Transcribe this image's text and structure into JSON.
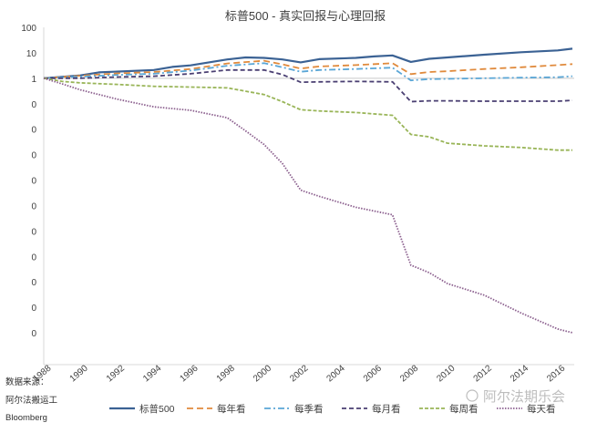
{
  "chart_data": {
    "type": "line",
    "title": "标普500 - 真实回报与心理回报",
    "xlabel": "",
    "ylabel": "",
    "yscale": "log",
    "ylim_exp": [
      -10,
      2
    ],
    "xlim": [
      1988,
      2016.9
    ],
    "y_tick_labels": [
      "100",
      "10",
      "1",
      "0",
      "0",
      "0",
      "0",
      "0",
      "0",
      "0",
      "0",
      "0",
      "0"
    ],
    "x_tick_labels": [
      "1988",
      "1990",
      "1992",
      "1994",
      "1996",
      "1998",
      "2000",
      "2002",
      "2004",
      "2006",
      "2008",
      "2010",
      "2012",
      "2014",
      "2016"
    ],
    "x_ticks": [
      1988,
      1990,
      1992,
      1994,
      1996,
      1998,
      2000,
      2002,
      2004,
      2006,
      2008,
      2010,
      2012,
      2014,
      2016
    ],
    "grid": false,
    "legend_position": "bottom",
    "reference_line_y": 1,
    "series": [
      {
        "name": "标普500",
        "color": "#3b6294",
        "dash": "solid",
        "x": [
          1988,
          1990,
          1991,
          1994,
          1995,
          1996,
          1997,
          1998,
          1999,
          2000,
          2001,
          2002,
          2003,
          2005,
          2006,
          2007,
          2008,
          2009,
          2010,
          2012,
          2014,
          2016,
          2016.8
        ],
        "y": [
          1,
          1.3,
          1.7,
          2.1,
          2.8,
          3.2,
          4.2,
          5.5,
          6.6,
          6.3,
          5.5,
          4.2,
          5.6,
          6.3,
          7.2,
          7.9,
          4.4,
          5.8,
          6.6,
          8.4,
          10.5,
          12.4,
          14.5
        ]
      },
      {
        "name": "每年看",
        "color": "#e08a3c",
        "dash": "long",
        "x": [
          1988,
          1990,
          1992,
          1994,
          1996,
          1998,
          2000,
          2001,
          2002,
          2003,
          2005,
          2007,
          2008,
          2009,
          2010,
          2012,
          2014,
          2016,
          2016.8
        ],
        "y": [
          1,
          1.25,
          1.55,
          1.75,
          2.3,
          3.8,
          4.9,
          3.5,
          2.4,
          2.9,
          3.3,
          3.9,
          1.45,
          1.75,
          1.9,
          2.3,
          2.7,
          3.3,
          3.6
        ]
      },
      {
        "name": "每季看",
        "color": "#5aa6d6",
        "dash": "dashdot",
        "x": [
          1988,
          1990,
          1992,
          1994,
          1996,
          1998,
          2000,
          2001,
          2002,
          2003,
          2005,
          2007,
          2008,
          2009,
          2010,
          2012,
          2014,
          2016,
          2016.8
        ],
        "y": [
          1,
          1.15,
          1.35,
          1.5,
          2.0,
          3.1,
          3.9,
          2.7,
          1.8,
          2.1,
          2.3,
          2.6,
          0.82,
          0.92,
          0.95,
          1.0,
          1.05,
          1.1,
          1.2
        ]
      },
      {
        "name": "每月看",
        "color": "#4a3f72",
        "dash": "medium",
        "x": [
          1988,
          1990,
          1992,
          1994,
          1996,
          1998,
          2000,
          2001,
          2002,
          2003,
          2005,
          2007,
          2008,
          2009,
          2010,
          2012,
          2014,
          2016,
          2016.8
        ],
        "y": [
          1,
          1.0,
          1.12,
          1.2,
          1.5,
          2.1,
          2.1,
          1.4,
          0.7,
          0.72,
          0.75,
          0.72,
          0.12,
          0.13,
          0.13,
          0.125,
          0.125,
          0.125,
          0.135
        ]
      },
      {
        "name": "每周看",
        "color": "#99b558",
        "dash": "short",
        "x": [
          1988,
          1989,
          1990,
          1992,
          1994,
          1996,
          1998,
          2000,
          2001,
          2002,
          2003,
          2005,
          2007,
          2008,
          2009,
          2010,
          2012,
          2014,
          2016,
          2016.8
        ],
        "y": [
          1,
          0.75,
          0.66,
          0.57,
          0.48,
          0.45,
          0.42,
          0.23,
          0.12,
          0.058,
          0.052,
          0.045,
          0.035,
          0.0062,
          0.005,
          0.0028,
          0.0022,
          0.0019,
          0.0015,
          0.0015
        ]
      },
      {
        "name": "每天看",
        "color": "#8b5f8e",
        "dash": "dot",
        "x": [
          1988,
          1989,
          1990,
          1992,
          1994,
          1996,
          1998,
          1999,
          2000,
          2001,
          2002,
          2003,
          2005,
          2007,
          2008,
          2009,
          2010,
          2012,
          2014,
          2016,
          2016.8
        ],
        "y": [
          1,
          0.6,
          0.35,
          0.15,
          0.075,
          0.055,
          0.028,
          0.0085,
          0.0025,
          0.00045,
          4e-05,
          2.3e-05,
          8.5e-06,
          4.3e-06,
          4.5e-08,
          2.3e-08,
          8.5e-09,
          3e-09,
          6e-10,
          1.4e-10,
          1e-10
        ]
      }
    ]
  },
  "source_note": [
    "数据来源：",
    "阿尔法搬运工",
    "Bloomberg"
  ],
  "watermark": "阿尔法期乐会"
}
